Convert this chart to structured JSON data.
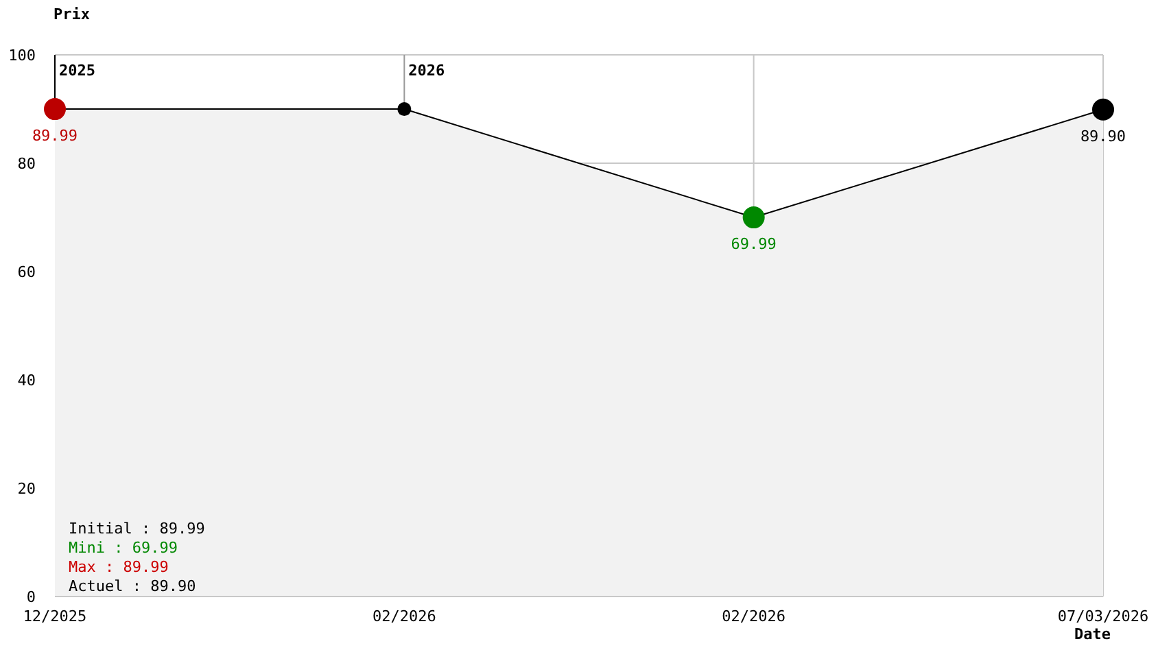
{
  "chart_data": {
    "type": "area",
    "ylabel": "Prix",
    "xlabel": "Date",
    "categories": [
      "12/2025",
      "02/2026",
      "02/2026",
      "07/03/2026"
    ],
    "series": [
      {
        "color": "#000000",
        "colors": [
          "#bb0000",
          "#000000",
          "#008800",
          "#000000"
        ],
        "values": [
          89.99,
          89.99,
          69.99,
          89.9
        ],
        "value_labels": [
          "89.99",
          null,
          "69.99",
          "89.90"
        ]
      }
    ],
    "ylim": [
      0,
      100
    ],
    "yticks": [
      0,
      20,
      40,
      60,
      80,
      100
    ],
    "grid": true,
    "legend": false,
    "marker": "circle",
    "line_style": "solid",
    "ref_lines": [
      {
        "axis": "x",
        "value": "12/2025",
        "label": "2025",
        "color": "#000000"
      },
      {
        "axis": "x",
        "value": "02/2026",
        "label": "2026",
        "color": "#999999"
      }
    ],
    "annotations": [
      "Initial : 89.99",
      "Mini : 69.99",
      "Max : 89.99",
      "Actuel : 89.90"
    ]
  }
}
